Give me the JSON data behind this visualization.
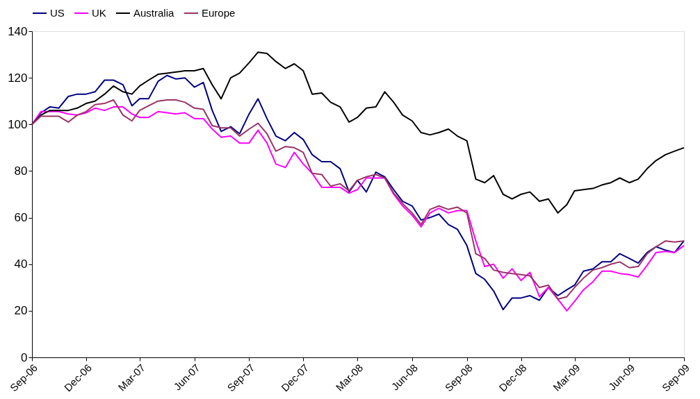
{
  "chart_data": {
    "type": "line",
    "legend": "top",
    "grid": false,
    "x": [
      "2006-09-01",
      "2006-09-16",
      "2006-10-01",
      "2006-10-16",
      "2006-11-01",
      "2006-11-16",
      "2006-12-01",
      "2006-12-16",
      "2007-01-01",
      "2007-01-16",
      "2007-02-01",
      "2007-02-16",
      "2007-03-01",
      "2007-03-16",
      "2007-04-01",
      "2007-04-16",
      "2007-05-01",
      "2007-05-16",
      "2007-06-01",
      "2007-06-16",
      "2007-07-01",
      "2007-07-16",
      "2007-08-01",
      "2007-08-16",
      "2007-09-01",
      "2007-09-16",
      "2007-10-01",
      "2007-10-16",
      "2007-11-01",
      "2007-11-16",
      "2007-12-01",
      "2007-12-16",
      "2008-01-01",
      "2008-01-16",
      "2008-02-01",
      "2008-02-16",
      "2008-03-01",
      "2008-03-16",
      "2008-04-01",
      "2008-04-16",
      "2008-05-01",
      "2008-05-16",
      "2008-06-01",
      "2008-06-16",
      "2008-07-01",
      "2008-07-16",
      "2008-08-01",
      "2008-08-16",
      "2008-09-01",
      "2008-09-16",
      "2008-10-01",
      "2008-10-16",
      "2008-11-01",
      "2008-11-16",
      "2008-12-01",
      "2008-12-16",
      "2009-01-01",
      "2009-01-16",
      "2009-02-01",
      "2009-02-16",
      "2009-03-01",
      "2009-03-16",
      "2009-04-01",
      "2009-04-16",
      "2009-05-01",
      "2009-05-16",
      "2009-06-01",
      "2009-06-16",
      "2009-07-01",
      "2009-07-16",
      "2009-08-01",
      "2009-08-16",
      "2009-09-01"
    ],
    "xlim": [
      "2006-09-01",
      "2009-09-01"
    ],
    "xticks": [
      {
        "value": "2006-09-01",
        "label": "Sep-06"
      },
      {
        "value": "2006-12-01",
        "label": "Dec-06"
      },
      {
        "value": "2007-03-01",
        "label": "Mar-07"
      },
      {
        "value": "2007-06-01",
        "label": "Jun-07"
      },
      {
        "value": "2007-09-01",
        "label": "Sep-07"
      },
      {
        "value": "2007-12-01",
        "label": "Dec-07"
      },
      {
        "value": "2008-03-01",
        "label": "Mar-08"
      },
      {
        "value": "2008-06-01",
        "label": "Jun-08"
      },
      {
        "value": "2008-09-01",
        "label": "Sep-08"
      },
      {
        "value": "2008-12-01",
        "label": "Dec-08"
      },
      {
        "value": "2009-03-01",
        "label": "Mar-09"
      },
      {
        "value": "2009-06-01",
        "label": "Jun-09"
      },
      {
        "value": "2009-09-01",
        "label": "Sep-09"
      }
    ],
    "ylim": [
      0,
      140
    ],
    "yticks": [
      0,
      20,
      40,
      60,
      80,
      100,
      120,
      140
    ],
    "series": [
      {
        "name": "US",
        "color": "#000080",
        "values": [
          100,
          105,
          107.5,
          107,
          112,
          113,
          113,
          114,
          119,
          119,
          117,
          108,
          111,
          111,
          118.5,
          121,
          119.5,
          120,
          116,
          118,
          106,
          97,
          99,
          96,
          104.5,
          111,
          102.5,
          95,
          93,
          96.5,
          93.5,
          87,
          84,
          84,
          81,
          71,
          76,
          71,
          79.5,
          77.5,
          72,
          67,
          65,
          59,
          60,
          61.5,
          57,
          55,
          48,
          36,
          33.5,
          28.5,
          20.5,
          25.5,
          25.5,
          26.5,
          24.5,
          30,
          26.5,
          29,
          31,
          37,
          38,
          41,
          41,
          44.5,
          42.5,
          40.5,
          45,
          47.5,
          46,
          45,
          50
        ]
      },
      {
        "name": "UK",
        "color": "#ff00ff",
        "values": [
          100,
          105.5,
          105.5,
          105.5,
          104.5,
          104,
          105,
          107,
          106,
          107.5,
          107.5,
          104.5,
          103,
          103,
          105.5,
          105,
          104.5,
          105,
          102.5,
          102.5,
          98,
          94.5,
          95,
          92,
          92,
          97.5,
          92,
          83,
          81.5,
          88,
          83,
          79,
          73,
          73,
          73,
          70.5,
          72,
          77,
          77,
          77,
          70,
          65,
          61,
          56,
          62,
          64,
          62,
          63,
          63,
          50,
          39,
          40,
          34,
          38,
          33,
          36.5,
          26,
          30,
          25,
          20,
          24,
          29,
          32.5,
          37,
          37,
          36,
          35.5,
          34.5,
          39.5,
          45,
          45.5,
          45,
          48
        ]
      },
      {
        "name": "Australia",
        "color": "#000000",
        "values": [
          100,
          104,
          106,
          106,
          106,
          107,
          109,
          110,
          113,
          116.5,
          114,
          113,
          116.5,
          119,
          121.5,
          122,
          122.5,
          123,
          123,
          124,
          117,
          111,
          120,
          122,
          126.5,
          131,
          130.5,
          127,
          124,
          126,
          123,
          113,
          113.5,
          109.5,
          107.5,
          101,
          103,
          107,
          107.5,
          114,
          109.5,
          104,
          101.5,
          96.5,
          95.5,
          96.5,
          98,
          95,
          93,
          76.5,
          75,
          78,
          70,
          68,
          70,
          71,
          67,
          68,
          62,
          65.5,
          71.5,
          72,
          72.5,
          74,
          75,
          77,
          75,
          76.5,
          81,
          84.5,
          87,
          88.5,
          90
        ]
      },
      {
        "name": "Europe",
        "color": "#993366",
        "values": [
          100,
          103.5,
          103.5,
          103.5,
          101,
          104,
          105.5,
          108.5,
          109,
          110.5,
          104,
          101.5,
          106,
          108,
          110,
          110.5,
          110.5,
          109.5,
          107,
          106.5,
          99.5,
          98.5,
          98.5,
          95,
          98,
          100.5,
          96,
          88.5,
          90.5,
          90,
          88,
          79,
          78.5,
          73.5,
          74.5,
          71.5,
          76,
          77.5,
          78.5,
          77,
          70.5,
          66,
          62,
          57,
          63.5,
          65,
          63.5,
          64.5,
          62,
          44.5,
          42.5,
          37.5,
          36.5,
          36,
          35.5,
          35,
          30,
          31,
          25,
          26,
          30,
          34,
          37.5,
          38.5,
          40,
          41,
          38.5,
          39,
          44.5,
          47.5,
          50,
          49.5,
          50
        ]
      }
    ]
  }
}
